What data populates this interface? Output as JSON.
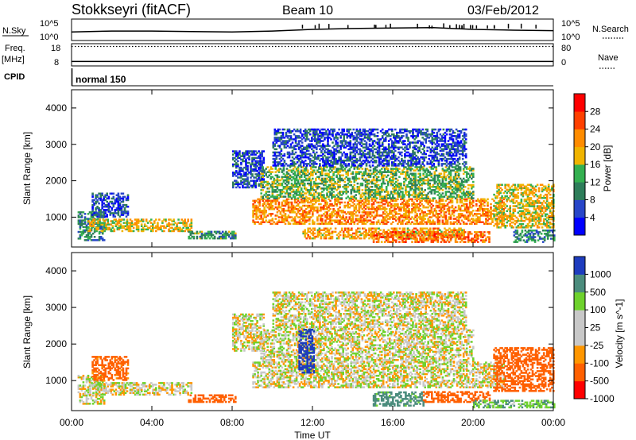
{
  "header": {
    "station": "Stokkseyri (fitACF)",
    "beam": "Beam 10",
    "date": "03/Feb/2012"
  },
  "panel_labels": {
    "nsky": "N.Sky",
    "nsearch": "N.Search",
    "freq_line1": "Freq.",
    "freq_line2": "[MHz]",
    "nave": "Nave",
    "cpid": "CPID",
    "cpid_value": "normal 150"
  },
  "colors": {
    "power_scale": [
      "#0000ff",
      "#2846c8",
      "#2e7d5a",
      "#34b050",
      "#f0b400",
      "#ff8c00",
      "#ff4000",
      "#ff0000"
    ],
    "velocity_scale": [
      "#ff0000",
      "#ff6000",
      "#ff9600",
      "#c8c8c8",
      "#c8c8c8",
      "#6ed22d",
      "#4b8c7d",
      "#1e3cbe"
    ]
  },
  "chart_data": [
    {
      "type": "line",
      "name_left": "N.Sky",
      "name_right": "N.Search",
      "left_ticks": [
        "10^5",
        "10^0"
      ],
      "right_ticks": [
        "10^5",
        "10^0"
      ],
      "x": [
        0,
        2,
        4,
        6,
        8,
        10,
        12,
        14,
        16,
        18,
        20,
        22,
        24
      ],
      "values": [
        2.0,
        2.2,
        2.2,
        2.1,
        2.0,
        2.2,
        2.6,
        2.8,
        2.9,
        3.0,
        2.6,
        2.4,
        2.3
      ]
    },
    {
      "type": "line",
      "name_left": "Freq. [MHz]",
      "name_right": "Nave",
      "left_ticks": [
        "18",
        "8"
      ],
      "right_ticks": [
        "80",
        "0"
      ],
      "x": [
        0,
        2,
        4,
        6,
        8,
        10,
        12,
        14,
        16,
        18,
        20,
        22,
        24
      ],
      "freq": [
        10,
        10,
        10,
        10,
        10,
        10,
        10,
        10,
        10,
        10,
        10,
        10,
        10
      ],
      "nave": [
        70,
        70,
        70,
        70,
        70,
        70,
        70,
        70,
        70,
        70,
        70,
        70,
        70
      ]
    },
    {
      "type": "heatmap",
      "quantity": "Power",
      "colorbar_label": "Power [dB]",
      "colorbar_ticks": [
        "28",
        "24",
        "20",
        "16",
        "12",
        "8",
        "4"
      ],
      "zlim": [
        0,
        32
      ],
      "ylabel": "Slant Range [km]",
      "yticks": [
        "4000",
        "3000",
        "2000",
        "1000"
      ],
      "ylim": [
        180,
        4500
      ],
      "xlim": [
        0,
        24
      ],
      "echo_regions": [
        {
          "t": [
            0.3,
            1.6
          ],
          "r": [
            350,
            1150
          ],
          "value": 10
        },
        {
          "t": [
            1.0,
            2.8
          ],
          "r": [
            1000,
            1650
          ],
          "value": 6
        },
        {
          "t": [
            0.8,
            6.0
          ],
          "r": [
            600,
            950
          ],
          "value": 18
        },
        {
          "t": [
            5.8,
            8.2
          ],
          "r": [
            400,
            600
          ],
          "value": 12
        },
        {
          "t": [
            8.0,
            9.6
          ],
          "r": [
            1800,
            2800
          ],
          "value": 6
        },
        {
          "t": [
            9.0,
            21.5
          ],
          "r": [
            800,
            1500
          ],
          "value": 22
        },
        {
          "t": [
            9.4,
            20.0
          ],
          "r": [
            1500,
            2400
          ],
          "value": 14
        },
        {
          "t": [
            10.0,
            19.6
          ],
          "r": [
            2400,
            3400
          ],
          "value": 6
        },
        {
          "t": [
            11.5,
            19.5
          ],
          "r": [
            400,
            700
          ],
          "value": 20
        },
        {
          "t": [
            15.0,
            20.8
          ],
          "r": [
            300,
            600
          ],
          "value": 24
        },
        {
          "t": [
            21.0,
            24.0
          ],
          "r": [
            700,
            1900
          ],
          "value": 18
        },
        {
          "t": [
            22.0,
            24.0
          ],
          "r": [
            300,
            650
          ],
          "value": 10
        }
      ]
    },
    {
      "type": "heatmap",
      "quantity": "Velocity",
      "colorbar_label": "Velocity [m s^-1]",
      "colorbar_ticks": [
        "1000",
        "500",
        "100",
        "25",
        "-25",
        "-100",
        "-500",
        "-1000"
      ],
      "zlim": [
        -1200,
        1200
      ],
      "ylabel": "Slant Range [km]",
      "yticks": [
        "4000",
        "3000",
        "2000",
        "1000"
      ],
      "ylim": [
        180,
        4500
      ],
      "xlim": [
        0,
        24
      ],
      "xlabel": "Time UT",
      "xticks": [
        "00:00",
        "04:00",
        "08:00",
        "12:00",
        "16:00",
        "20:00",
        "00:00"
      ],
      "echo_regions": [
        {
          "t": [
            0.3,
            1.6
          ],
          "r": [
            350,
            1150
          ],
          "value": 0
        },
        {
          "t": [
            1.0,
            2.8
          ],
          "r": [
            1000,
            1650
          ],
          "value": -150
        },
        {
          "t": [
            0.8,
            6.0
          ],
          "r": [
            600,
            950
          ],
          "value": 0
        },
        {
          "t": [
            5.8,
            8.2
          ],
          "r": [
            400,
            600
          ],
          "value": -200
        },
        {
          "t": [
            8.0,
            9.6
          ],
          "r": [
            1800,
            2800
          ],
          "value": 0
        },
        {
          "t": [
            9.0,
            21.5
          ],
          "r": [
            800,
            1500
          ],
          "value": 0
        },
        {
          "t": [
            9.4,
            20.0
          ],
          "r": [
            1500,
            2400
          ],
          "value": 0
        },
        {
          "t": [
            10.0,
            19.6
          ],
          "r": [
            2400,
            3400
          ],
          "value": 0
        },
        {
          "t": [
            11.3,
            12.1
          ],
          "r": [
            1200,
            2400
          ],
          "value": 700
        },
        {
          "t": [
            15.0,
            17.5
          ],
          "r": [
            300,
            700
          ],
          "value": 150
        },
        {
          "t": [
            17.5,
            20.8
          ],
          "r": [
            400,
            700
          ],
          "value": -300
        },
        {
          "t": [
            21.0,
            24.0
          ],
          "r": [
            700,
            1900
          ],
          "value": -250
        },
        {
          "t": [
            20.0,
            24.0
          ],
          "r": [
            250,
            450
          ],
          "value": 80
        }
      ]
    }
  ]
}
